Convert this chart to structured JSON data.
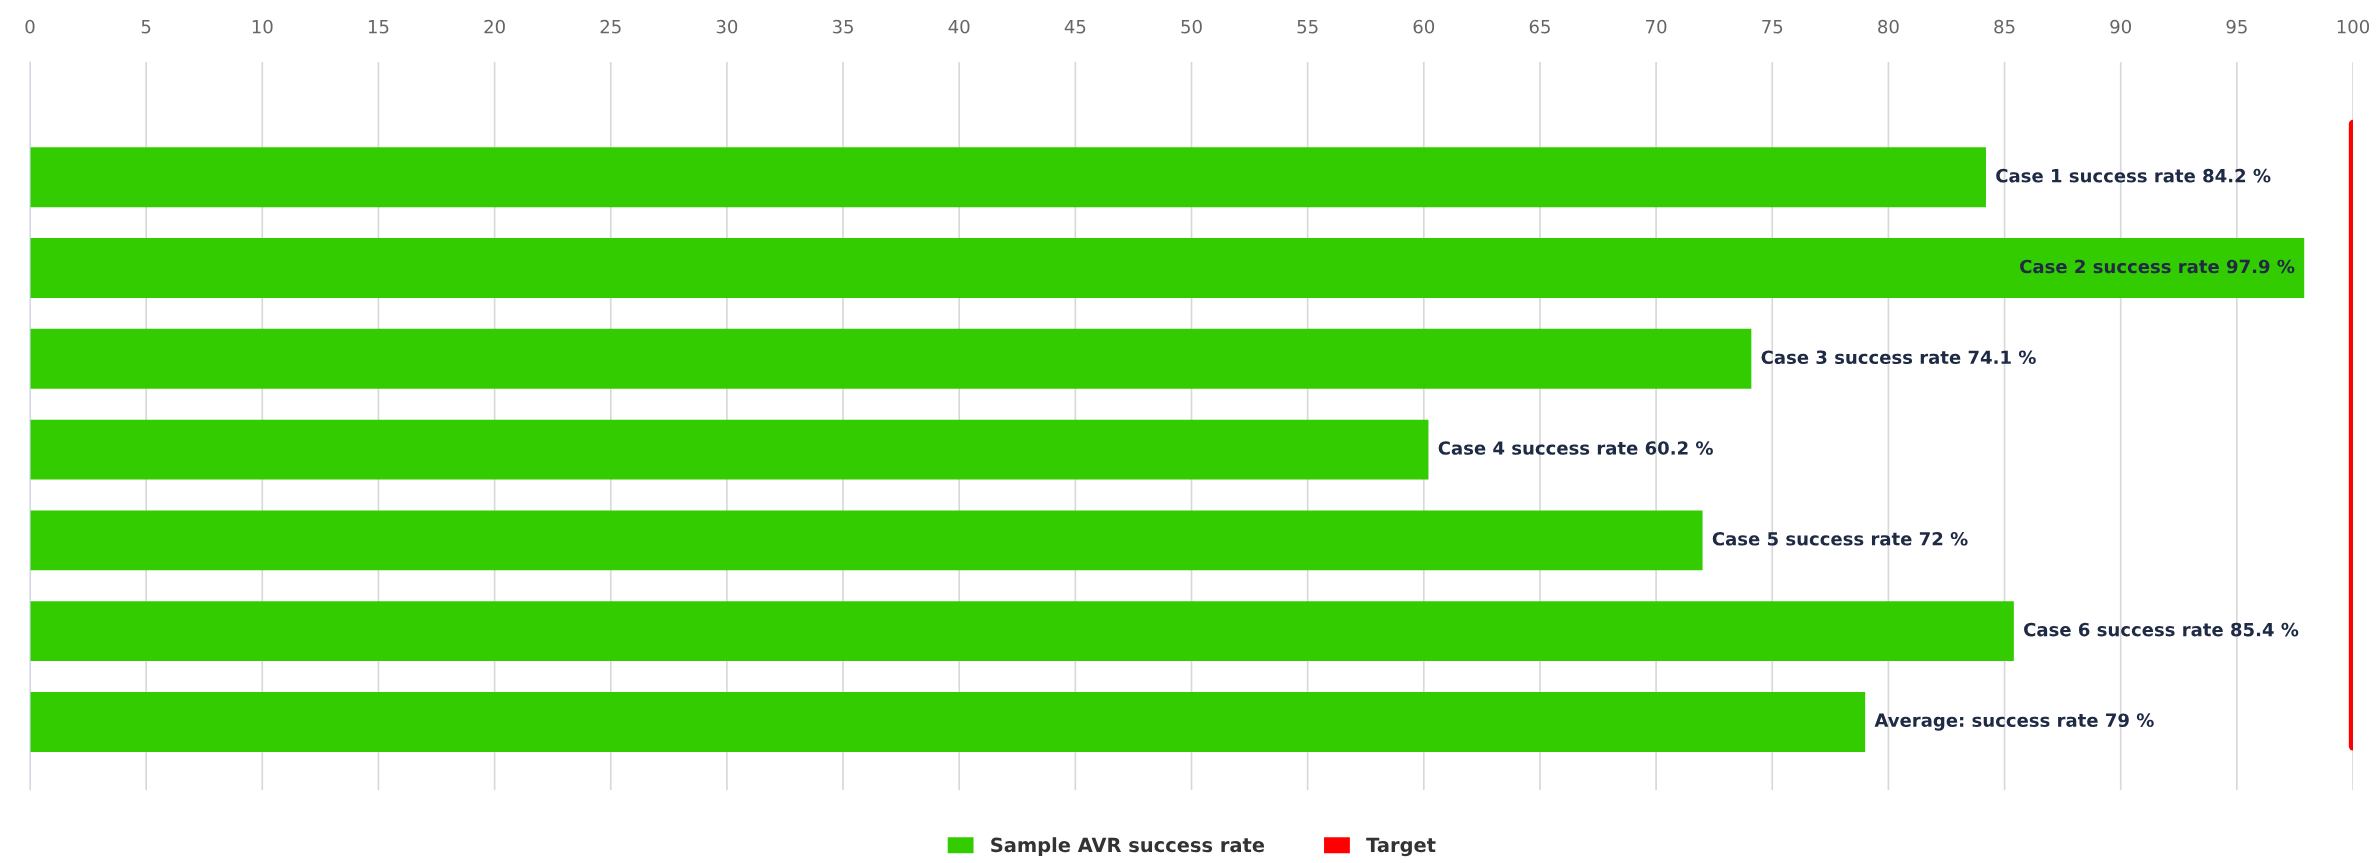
{
  "chart_data": {
    "type": "bar",
    "orientation": "horizontal",
    "categories": [
      null,
      null,
      null,
      null,
      null,
      null,
      null
    ],
    "series": [
      {
        "name": "Sample AVR success rate",
        "color": "#33cc00",
        "values": [
          84.2,
          97.9,
          74.1,
          60.2,
          72,
          85.4,
          79
        ],
        "value_labels": [
          "Case 1 success rate 84.2 %",
          "Case 2 success rate 97.9 %",
          "Case 3 success rate 74.1 %",
          "Case 4 success rate 60.2 %",
          "Case 5 success rate 72 %",
          "Case 6 success rate 85.4 %",
          "Average: success rate 79 %"
        ]
      }
    ],
    "ref_lines": [
      {
        "axis": "x",
        "value": 100,
        "label": "Target",
        "color": "#ff0000"
      }
    ],
    "xlim": [
      0,
      100
    ],
    "xticks": [
      0,
      5,
      10,
      15,
      20,
      25,
      30,
      35,
      40,
      45,
      50,
      55,
      60,
      65,
      70,
      75,
      80,
      85,
      90,
      95,
      100
    ],
    "grid": "x",
    "legend": "bottom"
  }
}
